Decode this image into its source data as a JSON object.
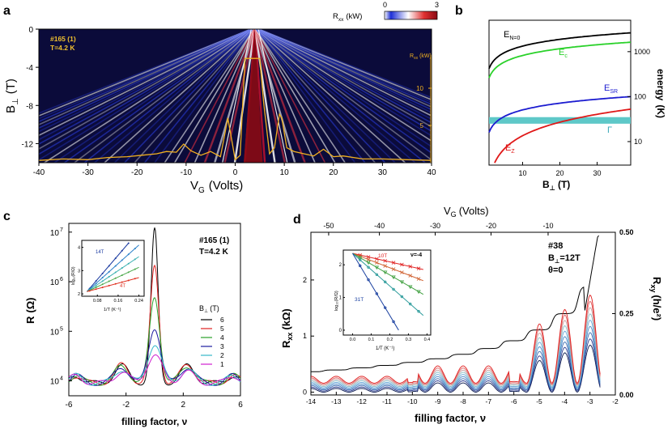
{
  "chart_data": [
    {
      "panel": "a",
      "type": "heatmap",
      "xlabel": "V",
      "xlabel_sub": "G",
      "xlabel_unit": "(Volts)",
      "ylabel": "B",
      "ylabel_sub": "⊥",
      "ylabel_unit": "(T)",
      "xlim": [
        -40,
        40
      ],
      "ylim": [
        -14,
        0
      ],
      "x_ticks": [
        "-40",
        "-30",
        "-20",
        "-10",
        "0",
        "10",
        "20",
        "30",
        "40"
      ],
      "y_ticks": [
        "0",
        "-4",
        "-8",
        "-12"
      ],
      "colorbar_label": "R",
      "colorbar_sub": "xx",
      "colorbar_unit": "(kW)",
      "colorbar_range": [
        0,
        3
      ],
      "colorbar_ticks": [
        "0",
        "3"
      ],
      "colorbar_colors": [
        "#ffffff",
        "#1d2fd6",
        "#c8102e"
      ],
      "annotation": [
        "#165 (1)",
        "T=4.2 K"
      ],
      "overlay_label": "R",
      "overlay_sub": "xx",
      "overlay_unit": "(kW)",
      "overlay_ticks": [
        "10",
        "5"
      ],
      "overlay_curve": {
        "x": [
          -40,
          -35,
          -30,
          -26,
          -22,
          -19,
          -16,
          -14,
          -12,
          -10.5,
          -9,
          -7,
          -5,
          -3,
          -1.5,
          0,
          1,
          2,
          3,
          4,
          5,
          5.8,
          7,
          8,
          9,
          9.5,
          10.5,
          12,
          14,
          16,
          18,
          20,
          22,
          26,
          30,
          35,
          40
        ],
        "y": [
          0.3,
          0.5,
          0.4,
          0.7,
          0.8,
          1.0,
          1.2,
          1.5,
          1.4,
          2.5,
          1.6,
          1.0,
          1.5,
          0.8,
          6.0,
          0.4,
          1.0,
          14.0,
          14.0,
          14.0,
          14.0,
          8.0,
          1.2,
          2.0,
          6.5,
          6.0,
          2.0,
          1.5,
          1.2,
          0.9,
          1.8,
          0.8,
          0.9,
          0.5,
          0.5,
          0.4,
          0.3
        ]
      }
    },
    {
      "panel": "b",
      "type": "line",
      "xlabel": "B",
      "xlabel_sub": "⊥",
      "xlabel_unit": "(T)",
      "ylabel": "energy",
      "ylabel_unit": "(K)",
      "xlim": [
        1,
        39
      ],
      "ylim_log": [
        3,
        5000
      ],
      "x_ticks": [
        "10",
        "20",
        "30"
      ],
      "y_ticks": [
        "10",
        "100",
        "1000"
      ],
      "band": {
        "name": "Γ",
        "range": [
          25,
          35
        ],
        "color": "#5ec8c8"
      },
      "series": [
        {
          "name": "E",
          "sub": "N=0",
          "color": "#000000",
          "law": "sqrt",
          "value_at_1T": 420
        },
        {
          "name": "E",
          "sub": "c",
          "color": "#2ad12a",
          "law": "sqrt",
          "value_at_1T": 260
        },
        {
          "name": "E",
          "sub": "SR",
          "color": "#1c1cd0",
          "law": "sqrt",
          "value_at_1T": 16
        },
        {
          "name": "E",
          "sub": "Z",
          "color": "#e01818",
          "law": "linear",
          "value_at_1T": 1.35
        }
      ]
    },
    {
      "panel": "c",
      "type": "line",
      "xlabel": "filling factor, ν",
      "ylabel": "R",
      "ylabel_unit": "(Ω)",
      "xlim": [
        -6,
        6
      ],
      "ylim_log": [
        5000,
        15000000
      ],
      "x_ticks": [
        "-6",
        "-2",
        "2",
        "6"
      ],
      "y_ticks": [
        "10",
        "10",
        "10",
        "10"
      ],
      "y_tick_exponents": [
        "4",
        "5",
        "6",
        "7"
      ],
      "annotation": [
        "#165 (1)",
        "T=4.2 K"
      ],
      "legend_title": "B",
      "legend_title_sub": "⊥",
      "legend_title_unit": "(T)",
      "series": [
        {
          "name": "6",
          "color": "#000000",
          "peak": 11000000,
          "side": 20000
        },
        {
          "name": "5",
          "color": "#e02020",
          "peak": 2000000,
          "side": 21000
        },
        {
          "name": "4",
          "color": "#2aa12a",
          "peak": 500000,
          "side": 20000
        },
        {
          "name": "3",
          "color": "#1a1aa0",
          "peak": 120000,
          "side": 19000
        },
        {
          "name": "2",
          "color": "#35b8c8",
          "peak": 55000,
          "side": 17000
        },
        {
          "name": "1",
          "color": "#d020d0",
          "peak": 32000,
          "side": 15000
        }
      ],
      "inset": {
        "xlabel": "1/T (K⁻¹)",
        "ylabel": "log₁₀(R/Ω)",
        "x_ticks": [
          "0.08",
          "0.16",
          "0.24"
        ],
        "y_ticks": [
          "2",
          "3",
          "4"
        ],
        "labels": [
          "14T",
          "4T"
        ],
        "lines": [
          {
            "color": "#1a3aa0",
            "y0": 2.1,
            "slope": 13.0
          },
          {
            "color": "#2a80c8",
            "y0": 2.1,
            "slope": 10.0
          },
          {
            "color": "#3ab0b0",
            "y0": 2.1,
            "slope": 7.5
          },
          {
            "color": "#4aa84a",
            "y0": 2.1,
            "slope": 5.2
          },
          {
            "color": "#e03020",
            "y0": 2.1,
            "slope": 3.0
          }
        ]
      }
    },
    {
      "panel": "d",
      "type": "line",
      "xlabel": "filling factor, ν",
      "xlabel_top": "V",
      "xlabel_top_sub": "G",
      "xlabel_top_unit": "(Volts)",
      "ylabel": "R",
      "ylabel_sub": "xx",
      "ylabel_unit": "(kΩ)",
      "ylabel_right": "R",
      "ylabel_right_sub": "xy",
      "ylabel_right_unit": "(h/e²)",
      "xlim": [
        -14,
        -2
      ],
      "ylim": [
        -0.05,
        2.85
      ],
      "ylim_right": [
        0,
        0.5
      ],
      "x_ticks": [
        "-14",
        "-13",
        "-12",
        "-11",
        "-10",
        "-9",
        "-8",
        "-7",
        "-6",
        "-5",
        "-4",
        "-3",
        "-2"
      ],
      "x_ticks_top": [
        "-50",
        "-40",
        "-30",
        "-20",
        "-10"
      ],
      "y_ticks": [
        "0",
        "1",
        "2"
      ],
      "y_ticks_right": [
        "0.00",
        "0.25",
        "0.50"
      ],
      "annotation": [
        "#38",
        "B",
        "⊥",
        "=12T",
        "θ=0"
      ],
      "osc_colors": [
        "#0a1a50",
        "#2a3a90",
        "#3a6ab0",
        "#4a8ac8",
        "#6aa8d8",
        "#8ac0c8",
        "#c8a0a0",
        "#e06060",
        "#e02020"
      ],
      "inset": {
        "xlabel": "1/T (K⁻¹)",
        "ylabel": "log₁₀(R/Ω)",
        "x_ticks": [
          "0.0",
          "0.1",
          "0.2",
          "0.3",
          "0.4"
        ],
        "y_ticks": [
          "0",
          "1",
          "2"
        ],
        "labels": [
          "10T",
          "31T",
          "ν=-4"
        ],
        "lines": [
          {
            "color": "#e02020",
            "y0": 2.35,
            "slope": -1.3
          },
          {
            "color": "#d06030",
            "y0": 2.35,
            "slope": -2.2
          },
          {
            "color": "#40a040",
            "y0": 2.35,
            "slope": -3.3
          },
          {
            "color": "#2a9a9a",
            "y0": 2.35,
            "slope": -5.0
          },
          {
            "color": "#1a40a0",
            "y0": 2.35,
            "slope": -9.5
          }
        ]
      }
    }
  ],
  "panel_labels": [
    "a",
    "b",
    "c",
    "d"
  ]
}
